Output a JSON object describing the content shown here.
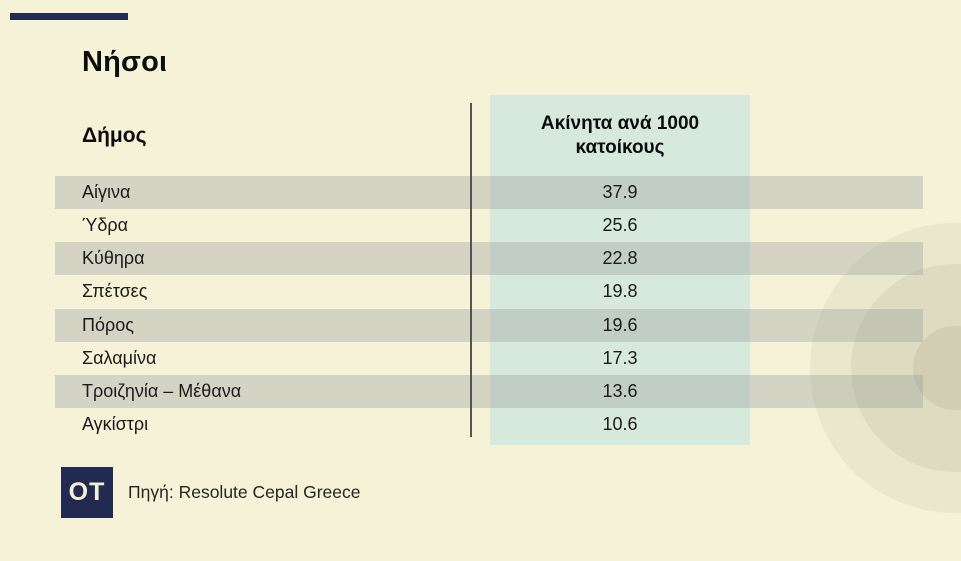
{
  "brand": {
    "logo_text": "OT",
    "accent_color": "#222a52"
  },
  "title": "Νήσοι",
  "table": {
    "col1_header": "Δήμος",
    "col2_header": "Ακίνητα ανά 1000 κατοίκους",
    "rows": [
      {
        "name": "Αίγινα",
        "value": "37.9"
      },
      {
        "name": "Ύδρα",
        "value": "25.6"
      },
      {
        "name": "Κύθηρα",
        "value": "22.8"
      },
      {
        "name": "Σπέτσες",
        "value": "19.8"
      },
      {
        "name": "Πόρος",
        "value": "19.6"
      },
      {
        "name": "Σαλαμίνα",
        "value": "17.3"
      },
      {
        "name": "Τροιζηνία – Μέθανα",
        "value": "13.6"
      },
      {
        "name": "Αγκίστρι",
        "value": "10.6"
      }
    ]
  },
  "source": "Πηγή: Resolute Cepal Greece",
  "colors": {
    "background": "#f5f2d8",
    "stripe": "#d5d4c4",
    "value_column_highlight": "#d8e9e2",
    "accent_navy": "#222a52"
  },
  "chart_data": {
    "type": "table",
    "title": "Νήσοι",
    "columns": [
      "Δήμος",
      "Ακίνητα ανά 1000 κατοίκους"
    ],
    "categories": [
      "Αίγινα",
      "Ύδρα",
      "Κύθηρα",
      "Σπέτσες",
      "Πόρος",
      "Σαλαμίνα",
      "Τροιζηνία – Μέθανα",
      "Αγκίστρι"
    ],
    "values": [
      37.9,
      25.6,
      22.8,
      19.8,
      19.6,
      17.3,
      13.6,
      10.6
    ],
    "sorted": "descending",
    "highlighted_column": "Ακίνητα ανά 1000 κατοίκους",
    "source": "Πηγή: Resolute Cepal Greece"
  }
}
